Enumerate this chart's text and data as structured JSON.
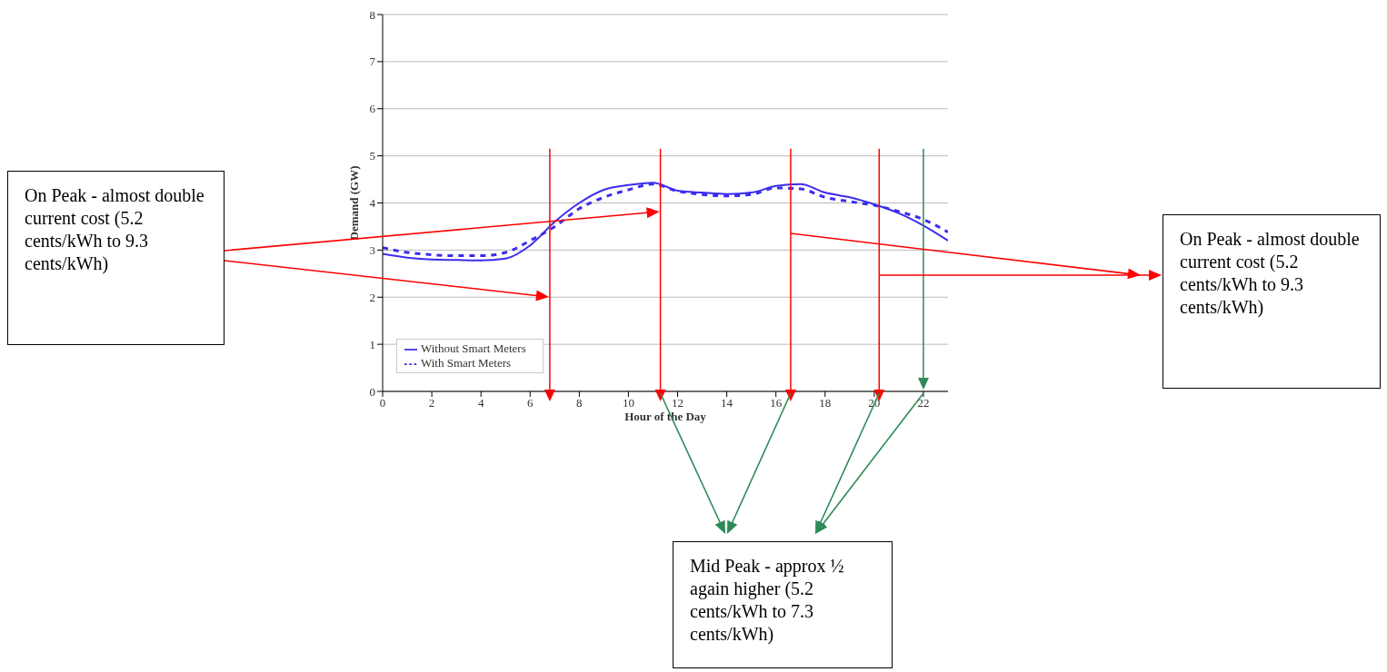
{
  "chart_data": {
    "type": "line",
    "xlabel": "Hour of the Day",
    "ylabel": "Demand (GW)",
    "x": [
      0,
      1,
      2,
      3,
      4,
      5,
      6,
      7,
      8,
      9,
      10,
      11,
      12,
      13,
      14,
      15,
      16,
      17,
      18,
      19,
      20,
      21,
      22,
      23
    ],
    "series": [
      {
        "name": "Without Smart Meters",
        "color": "#3a2cf0",
        "line_style": "solid",
        "values": [
          2.92,
          2.84,
          2.8,
          2.79,
          2.78,
          2.82,
          3.1,
          3.6,
          4.0,
          4.28,
          4.38,
          4.43,
          4.26,
          4.22,
          4.19,
          4.22,
          4.36,
          4.4,
          4.22,
          4.12,
          3.97,
          3.78,
          3.52,
          3.2
        ]
      },
      {
        "name": "With Smart Meters",
        "color": "#3a2cf0",
        "line_style": "dashed",
        "values": [
          3.05,
          2.95,
          2.9,
          2.88,
          2.88,
          2.95,
          3.2,
          3.5,
          3.88,
          4.12,
          4.28,
          4.4,
          4.25,
          4.18,
          4.15,
          4.18,
          4.32,
          4.3,
          4.12,
          4.03,
          3.95,
          3.82,
          3.65,
          3.38
        ]
      }
    ],
    "xlim": [
      0,
      23
    ],
    "xticks": [
      0,
      2,
      4,
      6,
      8,
      10,
      12,
      14,
      16,
      18,
      20,
      22
    ],
    "ylim": [
      0,
      8
    ],
    "yticks": [
      0,
      1,
      2,
      3,
      4,
      5,
      6,
      7,
      8
    ],
    "grid": "y",
    "legend": "bottom left",
    "marker": "none",
    "ref_lines": [
      {
        "axis": "x",
        "value": 6.8,
        "color": "#ff0000"
      },
      {
        "axis": "x",
        "value": 11.3,
        "color": "#ff0000"
      },
      {
        "axis": "x",
        "value": 16.6,
        "color": "#ff0000"
      },
      {
        "axis": "x",
        "value": 20.2,
        "color": "#ff0000"
      },
      {
        "axis": "x",
        "value": 22,
        "color": "#2e8b57"
      }
    ],
    "annotations": [
      "On Peak - almost double current cost  (5.2 cents/kWh to 9.3 cents/kWh)",
      "On Peak - almost double current cost (5.2 cents/kWh to 9.3 cents/kWh)",
      "Mid Peak - approx ½ again higher (5.2 cents/kWh to 7.3 cents/kWh)"
    ]
  }
}
